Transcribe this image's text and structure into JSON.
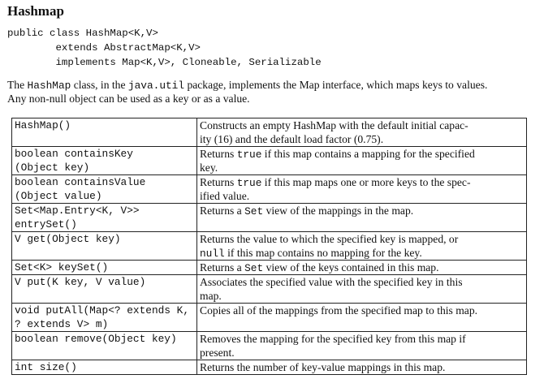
{
  "title": "Hashmap",
  "code": [
    "public class HashMap<K,V>",
    "        extends AbstractMap<K,V>",
    "        implements Map<K,V>, Cloneable, Serializable"
  ],
  "intro": {
    "line1_pre": "The ",
    "line1_code1": "HashMap",
    "line1_mid": " class, in the ",
    "line1_code2": "java.util",
    "line1_post": " package, implements the Map interface, which maps keys to values.",
    "line2": "Any non-null object can be used as a key or as a value."
  },
  "methods": [
    {
      "sig": [
        "HashMap()"
      ],
      "desc": [
        "Constructs an empty HashMap with the default initial capac-",
        "ity (16) and the default load factor (0.75)."
      ]
    },
    {
      "sig": [
        "boolean containsKey",
        "(Object key)"
      ],
      "desc": [
        "Returns true if this map contains a mapping for the specified",
        "key."
      ]
    },
    {
      "sig": [
        "boolean containsValue",
        "(Object value)"
      ],
      "desc": [
        "Returns true if this map maps one or more keys to the spec-",
        "ified value."
      ]
    },
    {
      "sig": [
        "Set<Map.Entry<K, V>>",
        "entrySet()"
      ],
      "desc": [
        "Returns a Set view of the mappings in the map."
      ]
    },
    {
      "sig": [
        "V get(Object key)"
      ],
      "desc": [
        "Returns the value to which the specified key is mapped, or",
        "null if this map contains no mapping for the key."
      ]
    },
    {
      "sig": [
        "Set<K> keySet()"
      ],
      "desc": [
        "Returns a Set view of the keys contained in this map."
      ]
    },
    {
      "sig": [
        "V put(K key, V value)"
      ],
      "desc": [
        "Associates the specified value with the specified key in this",
        "map."
      ]
    },
    {
      "sig": [
        "void putAll(Map<? extends K,",
        "? extends V> m)"
      ],
      "desc": [
        "Copies all of the mappings from the specified map to this map."
      ]
    },
    {
      "sig": [
        "boolean remove(Object key)"
      ],
      "desc": [
        "Removes the mapping for the specified key from this map if",
        "present."
      ]
    },
    {
      "sig": [
        "int size()"
      ],
      "desc": [
        "Returns the number of key-value mappings in this map."
      ]
    }
  ]
}
